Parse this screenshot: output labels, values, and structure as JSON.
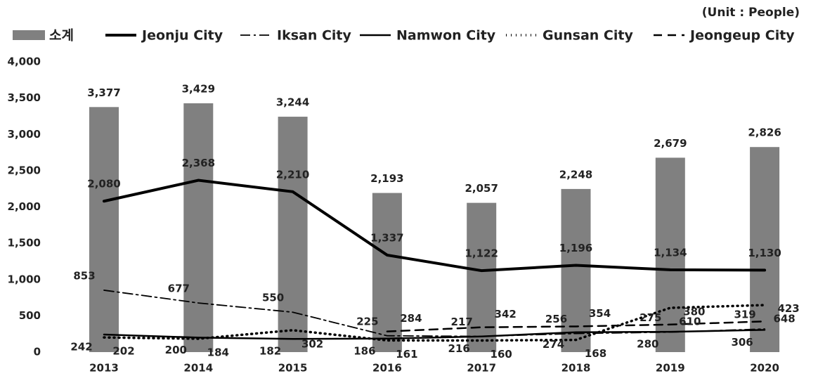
{
  "chart_data": {
    "type": "bar",
    "annotation": "(Unit : People)",
    "categories": [
      "2013",
      "2014",
      "2015",
      "2016",
      "2017",
      "2018",
      "2019",
      "2020"
    ],
    "ylim": [
      0,
      4000
    ],
    "yticks": [
      0,
      500,
      {
        "value": 1000,
        "label": "1,000"
      },
      {
        "value": 1500,
        "label": "1,500"
      },
      {
        "value": 2000,
        "label": "2,000"
      },
      {
        "value": 2500,
        "label": "2,500"
      },
      {
        "value": 3000,
        "label": "3,000"
      },
      {
        "value": 3500,
        "label": "3,500"
      },
      {
        "value": 4000,
        "label": "4,000"
      }
    ],
    "series": [
      {
        "name": "소계",
        "type": "bar",
        "color": "#808080",
        "values": [
          3377,
          3429,
          3244,
          2193,
          2057,
          2248,
          2679,
          2826
        ],
        "value_labels": [
          "3,377",
          "3,429",
          "3,244",
          "2,193",
          "2,057",
          "2,248",
          "2,679",
          "2,826"
        ]
      },
      {
        "name": "Jeonju City",
        "type": "line",
        "color": "#000000",
        "width": 4,
        "dash": "none",
        "values": [
          2080,
          2368,
          2210,
          1337,
          1122,
          1196,
          1134,
          1130
        ],
        "value_labels": [
          "2,080",
          "2,368",
          "2,210",
          "1,337",
          "1,122",
          "1,196",
          "1,134",
          "1,130"
        ]
      },
      {
        "name": "Iksan City",
        "type": "line",
        "color": "#000000",
        "width": 1.8,
        "dash": "14 5 3 5",
        "values": [
          853,
          677,
          550,
          225,
          217,
          256,
          275,
          319
        ]
      },
      {
        "name": "Namwon City",
        "type": "line",
        "color": "#000000",
        "width": 2.5,
        "dash": "none",
        "values": [
          242,
          200,
          182,
          186,
          216,
          274,
          280,
          306
        ]
      },
      {
        "name": "Gunsan City",
        "type": "line",
        "color": "#000000",
        "width": 3.5,
        "dash": "1 6",
        "values": [
          202,
          184,
          302,
          161,
          160,
          168,
          610,
          648
        ]
      },
      {
        "name": "Jeongeup City",
        "type": "line",
        "color": "#000000",
        "width": 2.5,
        "dash": "12 8",
        "values": [
          null,
          null,
          null,
          284,
          342,
          354,
          380,
          423
        ]
      }
    ]
  }
}
